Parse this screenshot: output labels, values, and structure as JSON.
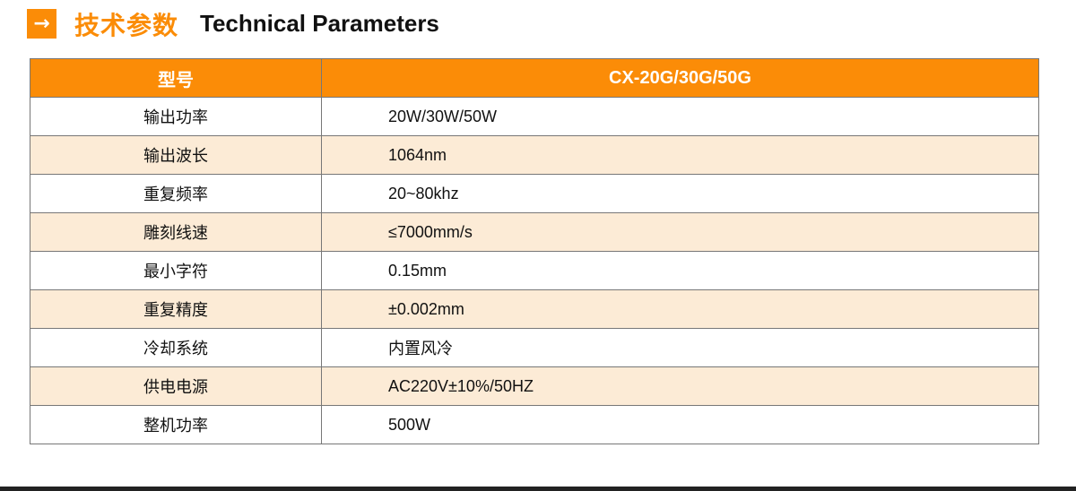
{
  "header": {
    "icon": "arrow-right-icon",
    "title_zh": "技术参数",
    "title_en": "Technical Parameters"
  },
  "colors": {
    "accent": "#fb8c07",
    "alt_row": "#fcebd6"
  },
  "table": {
    "head": {
      "key": "型号",
      "value": "CX-20G/30G/50G"
    },
    "rows": [
      {
        "key": "输出功率",
        "value": "20W/30W/50W"
      },
      {
        "key": "输出波长",
        "value": "1064nm"
      },
      {
        "key": "重复频率",
        "value": "20~80khz"
      },
      {
        "key": "雕刻线速",
        "value": "≤7000mm/s"
      },
      {
        "key": "最小字符",
        "value": "0.15mm"
      },
      {
        "key": "重复精度",
        "value": "±0.002mm"
      },
      {
        "key": "冷却系统",
        "value": "内置风冷"
      },
      {
        "key": "供电电源",
        "value": "AC220V±10%/50HZ"
      },
      {
        "key": "整机功率",
        "value": "500W"
      }
    ]
  }
}
